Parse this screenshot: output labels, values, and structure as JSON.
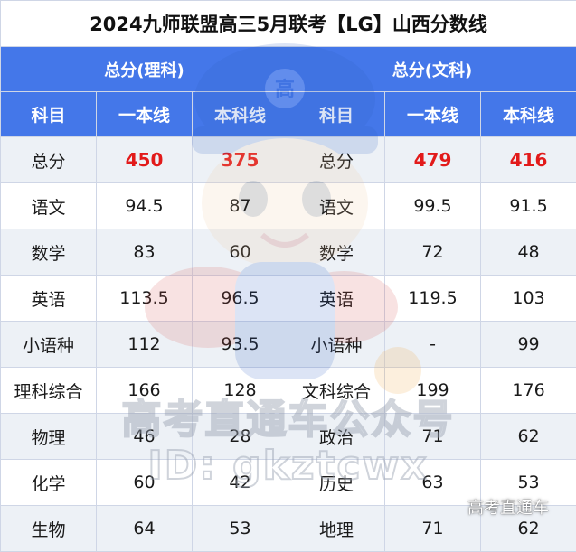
{
  "title": "2024九师联盟高三5月联考【LG】山西分数线",
  "groups": {
    "science": "总分(理科)",
    "arts": "总分(文科)"
  },
  "headers": {
    "subject": "科目",
    "tier1": "一本线",
    "tier2": "本科线"
  },
  "science_rows": [
    {
      "subject": "总分",
      "tier1": "450",
      "tier2": "375"
    },
    {
      "subject": "语文",
      "tier1": "94.5",
      "tier2": "87"
    },
    {
      "subject": "数学",
      "tier1": "83",
      "tier2": "60"
    },
    {
      "subject": "英语",
      "tier1": "113.5",
      "tier2": "96.5"
    },
    {
      "subject": "小语种",
      "tier1": "112",
      "tier2": "93.5"
    },
    {
      "subject": "理科综合",
      "tier1": "166",
      "tier2": "128"
    },
    {
      "subject": "物理",
      "tier1": "46",
      "tier2": "28"
    },
    {
      "subject": "化学",
      "tier1": "60",
      "tier2": "42"
    },
    {
      "subject": "生物",
      "tier1": "64",
      "tier2": "53"
    }
  ],
  "arts_rows": [
    {
      "subject": "总分",
      "tier1": "479",
      "tier2": "416"
    },
    {
      "subject": "语文",
      "tier1": "99.5",
      "tier2": "91.5"
    },
    {
      "subject": "数学",
      "tier1": "72",
      "tier2": "48"
    },
    {
      "subject": "英语",
      "tier1": "119.5",
      "tier2": "103"
    },
    {
      "subject": "小语种",
      "tier1": "-",
      "tier2": "99"
    },
    {
      "subject": "文科综合",
      "tier1": "199",
      "tier2": "176"
    },
    {
      "subject": "政治",
      "tier1": "71",
      "tier2": "62"
    },
    {
      "subject": "历史",
      "tier1": "63",
      "tier2": "53"
    },
    {
      "subject": "地理",
      "tier1": "71",
      "tier2": "62"
    }
  ],
  "watermark": {
    "badge": "高",
    "line1": "高考直通车公众号",
    "line2": "ID: gkztcwx",
    "corner": "高考直通车"
  },
  "colors": {
    "header_blue": "#4477e9",
    "highlight_red": "#e21a1a",
    "stripe_gray": "#edf1f6"
  }
}
